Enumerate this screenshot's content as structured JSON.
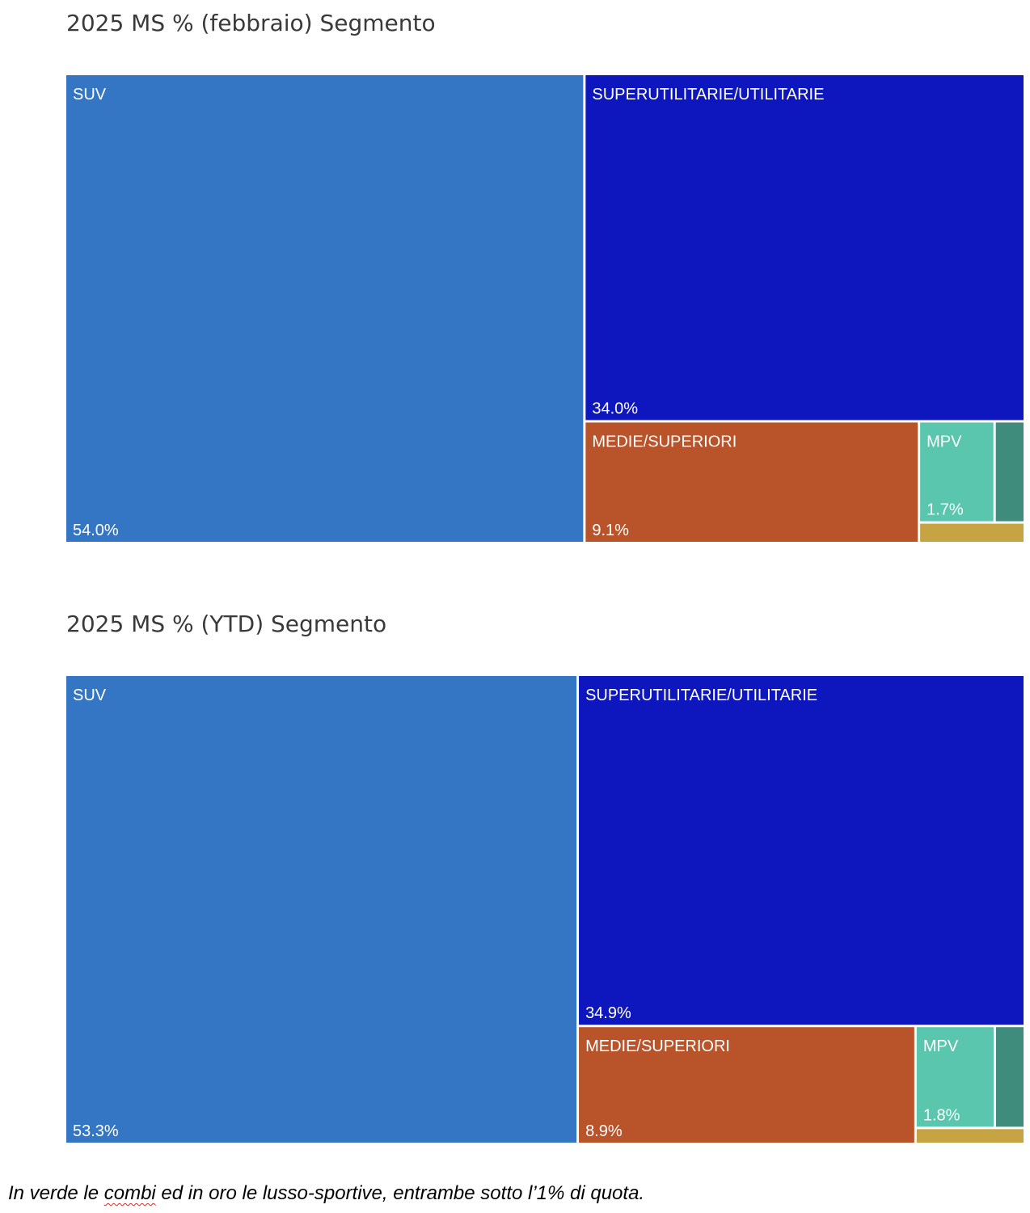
{
  "chart_data": [
    {
      "type": "treemap",
      "title": "2025 MS % (febbraio) Segmento",
      "segments": [
        {
          "name": "SUV",
          "value": 54.0,
          "value_label": "54.0%",
          "color": "#3476c4"
        },
        {
          "name": "SUPERUTILITARIE/UTILITARIE",
          "value": 34.0,
          "value_label": "34.0%",
          "color": "#0e17bd"
        },
        {
          "name": "MEDIE/SUPERIORI",
          "value": 9.1,
          "value_label": "9.1%",
          "color": "#b9532a"
        },
        {
          "name": "MPV",
          "value": 1.7,
          "value_label": "1.7%",
          "color": "#5bc6ae"
        },
        {
          "name": "",
          "value": 0.7,
          "value_label": "",
          "color": "#3f8b7c"
        },
        {
          "name": "",
          "value": 0.5,
          "value_label": "",
          "color": "#c6a443"
        }
      ]
    },
    {
      "type": "treemap",
      "title": "2025 MS % (YTD) Segmento",
      "segments": [
        {
          "name": "SUV",
          "value": 53.3,
          "value_label": "53.3%",
          "color": "#3476c4"
        },
        {
          "name": "SUPERUTILITARIE/UTILITARIE",
          "value": 34.9,
          "value_label": "34.9%",
          "color": "#0e17bd"
        },
        {
          "name": "MEDIE/SUPERIORI",
          "value": 8.9,
          "value_label": "8.9%",
          "color": "#b9532a"
        },
        {
          "name": "MPV",
          "value": 1.8,
          "value_label": "1.8%",
          "color": "#5bc6ae"
        },
        {
          "name": "",
          "value": 0.7,
          "value_label": "",
          "color": "#3f8b7c"
        },
        {
          "name": "",
          "value": 0.4,
          "value_label": "",
          "color": "#c6a443"
        }
      ]
    }
  ],
  "caption": {
    "before": "In verde le ",
    "underlined": "combi",
    "after": " ed in oro le lusso-sportive, entrambe sotto l’1% di quota."
  }
}
